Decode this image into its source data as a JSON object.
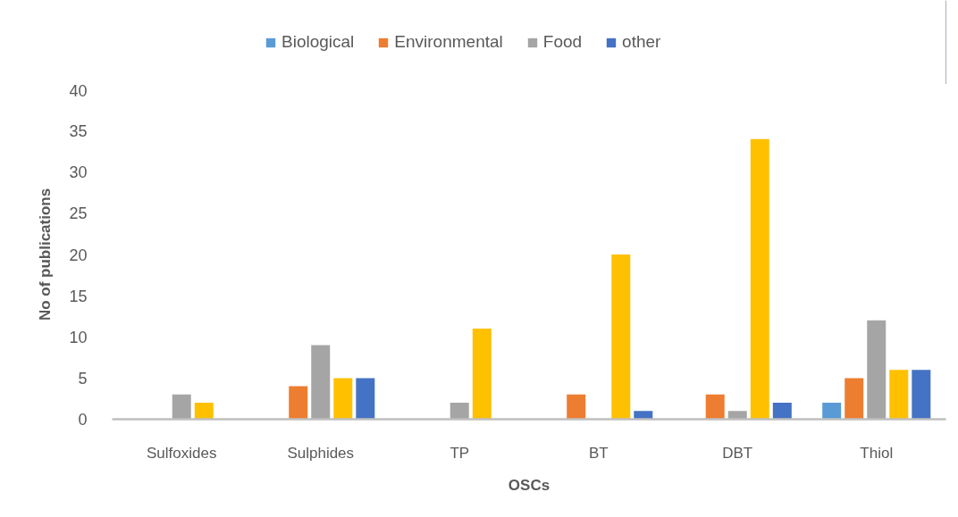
{
  "chart_data": {
    "type": "bar",
    "xlabel": "OSCs",
    "ylabel": "No of publications",
    "categories": [
      "Sulfoxides",
      "Sulphides",
      "TP",
      "BT",
      "DBT",
      "Thiol"
    ],
    "ylim": [
      0,
      40
    ],
    "yticks": [
      0,
      5,
      10,
      15,
      20,
      25,
      30,
      35,
      40
    ],
    "legend": "top",
    "series": [
      {
        "name": "Biological",
        "color": "#5b9bd5",
        "values": [
          null,
          null,
          null,
          null,
          null,
          2
        ]
      },
      {
        "name": "Environmental",
        "color": "#ed7d31",
        "values": [
          null,
          4,
          null,
          3,
          3,
          5
        ]
      },
      {
        "name": "Food",
        "color": "#a5a5a5",
        "values": [
          3,
          9,
          2,
          null,
          1,
          12
        ]
      },
      {
        "color": "#ffc000",
        "values": [
          2,
          5,
          11,
          20,
          34,
          6
        ]
      },
      {
        "name": "other",
        "color": "#4472c4",
        "values": [
          null,
          5,
          null,
          1,
          2,
          6
        ]
      }
    ]
  }
}
